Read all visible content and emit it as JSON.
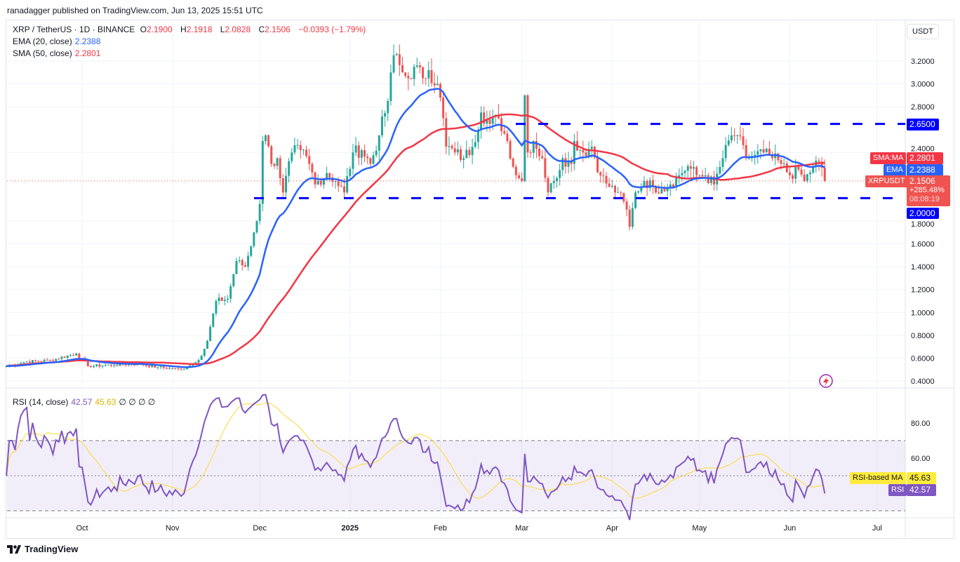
{
  "header": {
    "published": "ranadagger published on TradingView.com, Jun 13, 2025 15:51 UTC"
  },
  "legend": {
    "symbol": "XRP / TetherUS · 1D · BINANCE",
    "o_label": "O",
    "o": "2.1900",
    "h_label": "H",
    "h": "2.1918",
    "l_label": "L",
    "l": "2.0828",
    "c_label": "C",
    "c": "2.1506",
    "change": "−0.0393 (−1.79%)",
    "ema_label": "EMA (20, close)",
    "ema": "2.2388",
    "sma_label": "SMA (50, close)",
    "sma": "2.2801",
    "rsi_label": "RSI (14, close)",
    "rsi": "42.57",
    "rsi_ma": "45.63",
    "rsi_extra": "∅ ∅ ∅ ∅"
  },
  "axis": {
    "currency": "USDT"
  },
  "tags": {
    "resistance": "2.6500",
    "support": "2.0000",
    "sma_name": "SMA:MA",
    "sma_val": "2.2801",
    "ema_name": "EMA",
    "ema_val": "2.2388",
    "sym_name": "XRPUSDT",
    "price": "2.1506",
    "pct": "+285.48%",
    "countdown": "08:08:19",
    "rsi_ma_name": "RSI-based MA",
    "rsi_ma_val": "45.63",
    "rsi_name": "RSI",
    "rsi_val": "42.57"
  },
  "footer": {
    "brand": "TradingView"
  },
  "colors": {
    "up": "#26a69a",
    "down": "#ef5350",
    "ema": "#2962ff",
    "sma": "#f23645",
    "levels": "#0000ff",
    "rsi": "#7e57c2",
    "rsi_ma": "#fdd835"
  },
  "chart_data": {
    "type": "candlestick",
    "title": "XRP / TetherUS · 1D · BINANCE",
    "ylim": [
      0.3,
      3.45
    ],
    "yticks": [
      "3.2000",
      "3.0000",
      "2.8000",
      "2.4000",
      "1.8000",
      "1.6000",
      "1.4000",
      "1.2000",
      "1.0000",
      "0.8000",
      "0.6000",
      "0.4000"
    ],
    "xticks": [
      "Oct",
      "Nov",
      "Dec",
      "2025",
      "Feb",
      "Mar",
      "Apr",
      "May",
      "Jun",
      "Jul"
    ],
    "rsi_yticks": [
      "80.00",
      "60.00"
    ],
    "levels": [
      2.65,
      2.0
    ],
    "close_keypoints": [
      [
        "2024-09-05",
        0.53
      ],
      [
        "2024-09-12",
        0.57
      ],
      [
        "2024-09-20",
        0.58
      ],
      [
        "2024-09-29",
        0.64
      ],
      [
        "2024-10-03",
        0.53
      ],
      [
        "2024-10-12",
        0.54
      ],
      [
        "2024-10-20",
        0.55
      ],
      [
        "2024-10-27",
        0.52
      ],
      [
        "2024-11-04",
        0.5
      ],
      [
        "2024-11-08",
        0.55
      ],
      [
        "2024-11-11",
        0.62
      ],
      [
        "2024-11-13",
        0.75
      ],
      [
        "2024-11-16",
        1.1
      ],
      [
        "2024-11-20",
        1.12
      ],
      [
        "2024-11-23",
        1.45
      ],
      [
        "2024-11-26",
        1.4
      ],
      [
        "2024-11-29",
        1.7
      ],
      [
        "2024-12-01",
        1.95
      ],
      [
        "2024-12-02",
        2.5
      ],
      [
        "2024-12-03",
        2.55
      ],
      [
        "2024-12-05",
        2.3
      ],
      [
        "2024-12-07",
        2.35
      ],
      [
        "2024-12-09",
        2.05
      ],
      [
        "2024-12-12",
        2.4
      ],
      [
        "2024-12-15",
        2.42
      ],
      [
        "2024-12-18",
        2.3
      ],
      [
        "2024-12-20",
        2.12
      ],
      [
        "2024-12-24",
        2.22
      ],
      [
        "2024-12-27",
        2.15
      ],
      [
        "2024-12-30",
        2.05
      ],
      [
        "2025-01-02",
        2.4
      ],
      [
        "2025-01-05",
        2.42
      ],
      [
        "2025-01-08",
        2.3
      ],
      [
        "2025-01-11",
        2.55
      ],
      [
        "2025-01-14",
        2.85
      ],
      [
        "2025-01-15",
        3.1
      ],
      [
        "2025-01-16",
        3.25
      ],
      [
        "2025-01-19",
        3.1
      ],
      [
        "2025-01-21",
        3.05
      ],
      [
        "2025-01-23",
        3.15
      ],
      [
        "2025-01-26",
        3.05
      ],
      [
        "2025-01-28",
        3.12
      ],
      [
        "2025-01-31",
        3.0
      ],
      [
        "2025-02-02",
        2.7
      ],
      [
        "2025-02-03",
        2.45
      ],
      [
        "2025-02-06",
        2.4
      ],
      [
        "2025-02-09",
        2.35
      ],
      [
        "2025-02-12",
        2.45
      ],
      [
        "2025-02-15",
        2.75
      ],
      [
        "2025-02-18",
        2.65
      ],
      [
        "2025-02-21",
        2.7
      ],
      [
        "2025-02-24",
        2.5
      ],
      [
        "2025-02-27",
        2.2
      ],
      [
        "2025-03-01",
        2.15
      ],
      [
        "2025-03-02",
        2.9
      ],
      [
        "2025-03-03",
        2.4
      ],
      [
        "2025-03-05",
        2.5
      ],
      [
        "2025-03-08",
        2.35
      ],
      [
        "2025-03-10",
        2.05
      ],
      [
        "2025-03-12",
        2.15
      ],
      [
        "2025-03-15",
        2.35
      ],
      [
        "2025-03-18",
        2.3
      ],
      [
        "2025-03-19",
        2.5
      ],
      [
        "2025-03-22",
        2.4
      ],
      [
        "2025-03-25",
        2.45
      ],
      [
        "2025-03-28",
        2.2
      ],
      [
        "2025-03-31",
        2.1
      ],
      [
        "2025-04-03",
        2.05
      ],
      [
        "2025-04-06",
        1.9
      ],
      [
        "2025-04-07",
        1.75
      ],
      [
        "2025-04-09",
        2.05
      ],
      [
        "2025-04-12",
        2.15
      ],
      [
        "2025-04-15",
        2.1
      ],
      [
        "2025-04-18",
        2.08
      ],
      [
        "2025-04-21",
        2.12
      ],
      [
        "2025-04-24",
        2.2
      ],
      [
        "2025-04-27",
        2.28
      ],
      [
        "2025-04-30",
        2.2
      ],
      [
        "2025-05-03",
        2.2
      ],
      [
        "2025-05-06",
        2.12
      ],
      [
        "2025-05-09",
        2.35
      ],
      [
        "2025-05-12",
        2.55
      ],
      [
        "2025-05-14",
        2.55
      ],
      [
        "2025-05-17",
        2.35
      ],
      [
        "2025-05-20",
        2.38
      ],
      [
        "2025-05-23",
        2.4
      ],
      [
        "2025-05-26",
        2.35
      ],
      [
        "2025-05-29",
        2.3
      ],
      [
        "2025-06-01",
        2.2
      ],
      [
        "2025-06-04",
        2.25
      ],
      [
        "2025-06-06",
        2.15
      ],
      [
        "2025-06-09",
        2.28
      ],
      [
        "2025-06-11",
        2.32
      ],
      [
        "2025-06-13",
        2.1506
      ]
    ],
    "series": [
      {
        "name": "EMA (20, close)",
        "last": 2.2388
      },
      {
        "name": "SMA (50, close)",
        "last": 2.2801
      },
      {
        "name": "RSI (14, close)",
        "last": 42.57
      },
      {
        "name": "RSI-based MA",
        "last": 45.63
      }
    ]
  }
}
